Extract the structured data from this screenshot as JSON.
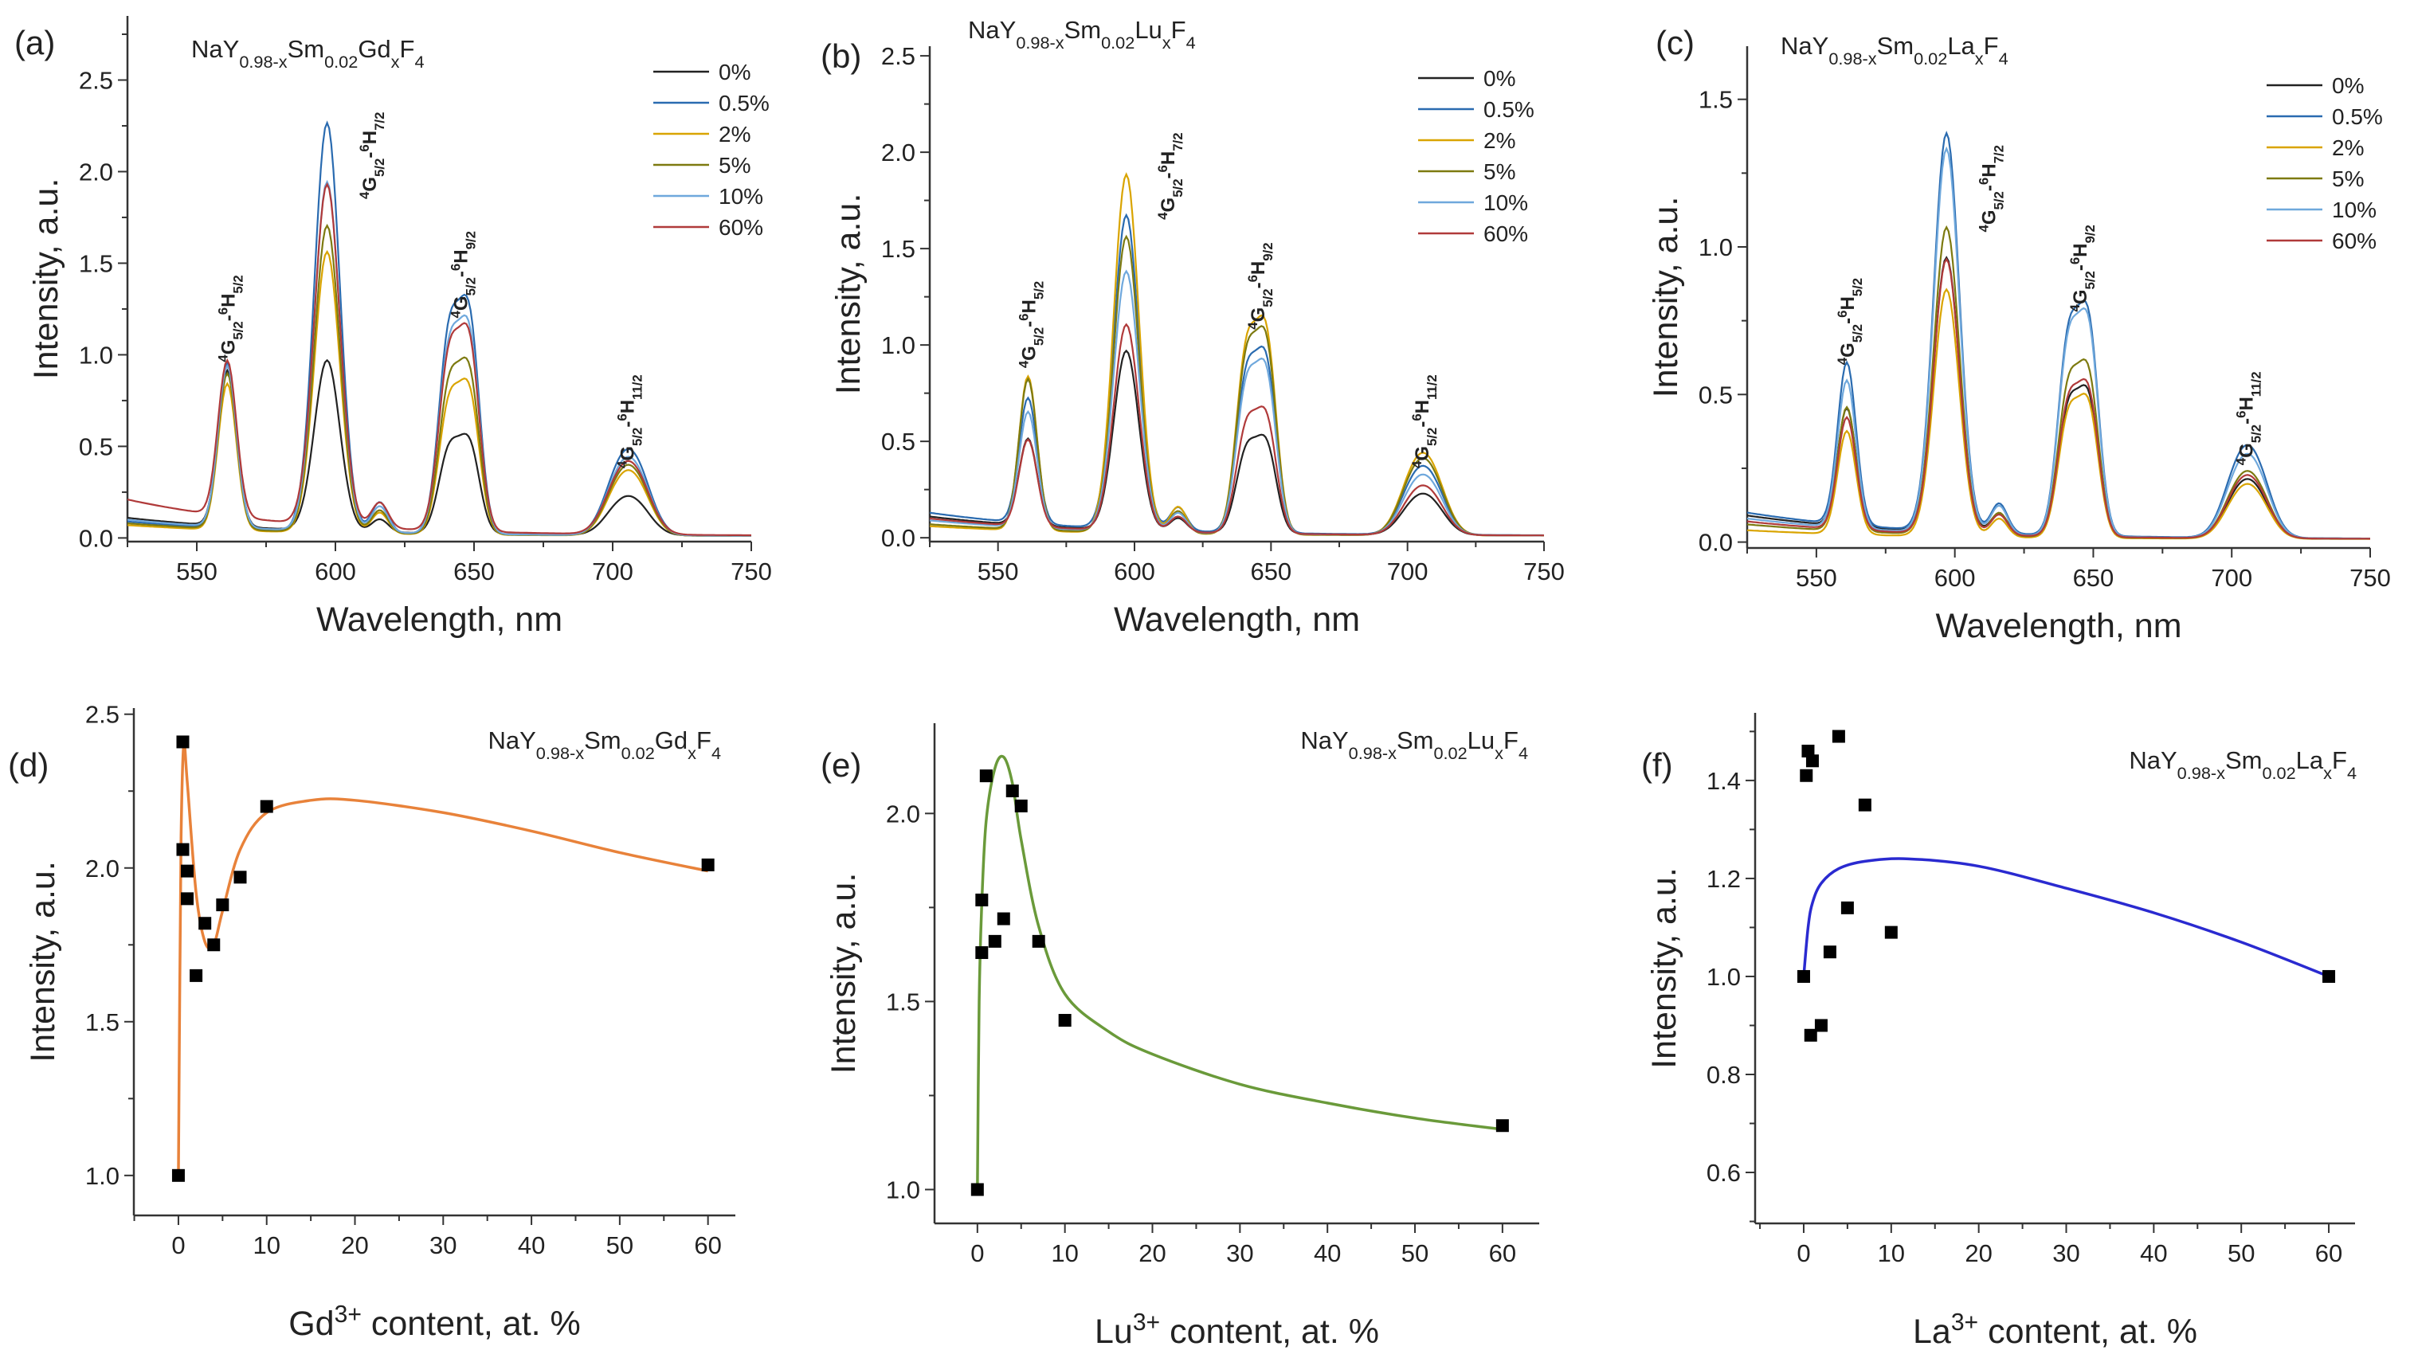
{
  "chart_data": [
    {
      "id": "a",
      "type": "line",
      "panel_label": "(a)",
      "title": [
        [
          "NaY",
          ""
        ],
        [
          "0.98-x",
          "sub"
        ],
        [
          "Sm",
          ""
        ],
        [
          "0.02",
          "sub"
        ],
        [
          "Gd",
          ""
        ],
        [
          "x",
          "sub"
        ],
        [
          "F",
          ""
        ],
        [
          "4",
          "sub"
        ]
      ],
      "xlabel": "Wavelength, nm",
      "ylabel": "Intensity, a.u.",
      "xlim": [
        525,
        750
      ],
      "ylim": [
        -0.02,
        2.85
      ],
      "xticks": [
        550,
        600,
        650,
        700,
        750
      ],
      "yticks": [
        0.0,
        0.5,
        1.0,
        1.5,
        2.0,
        2.5
      ],
      "peak_wavelengths": [
        561,
        597,
        645,
        705
      ],
      "series": [
        {
          "name": "0%",
          "color": "#222222",
          "peaks": [
            0.85,
            1.0,
            0.48,
            0.15
          ],
          "baseline": 0.1
        },
        {
          "name": "0.5%",
          "color": "#2a6bb0",
          "peaks": [
            0.9,
            2.4,
            1.15,
            0.33
          ],
          "baseline": 0.08
        },
        {
          "name": "2%",
          "color": "#d9a400",
          "peaks": [
            0.8,
            1.65,
            0.75,
            0.25
          ],
          "baseline": 0.06
        },
        {
          "name": "5%",
          "color": "#7d7a10",
          "peaks": [
            0.85,
            1.8,
            0.85,
            0.27
          ],
          "baseline": 0.07
        },
        {
          "name": "10%",
          "color": "#6fa8dc",
          "peaks": [
            0.88,
            2.05,
            1.05,
            0.3
          ],
          "baseline": 0.09
        },
        {
          "name": "60%",
          "color": "#b03a3a",
          "peaks": [
            0.85,
            2.0,
            1.0,
            0.28
          ],
          "baseline": 0.2
        }
      ],
      "annotations": [
        {
          "lower": [
            "4",
            "G",
            "5/2"
          ],
          "upper": [
            "6",
            "H",
            "5/2"
          ],
          "wavelength": 561,
          "intensity": 0.96
        },
        {
          "lower": [
            "4",
            "G",
            "5/2"
          ],
          "upper": [
            "6",
            "H",
            "7/2"
          ],
          "wavelength": 612,
          "intensity": 1.85
        },
        {
          "lower": [
            "4",
            "G",
            "5/2"
          ],
          "upper": [
            "6",
            "H",
            "9/2"
          ],
          "wavelength": 645,
          "intensity": 1.2
        },
        {
          "lower": [
            "4",
            "G",
            "5/2"
          ],
          "upper": [
            "6",
            "H",
            "11/2"
          ],
          "wavelength": 705,
          "intensity": 0.38
        }
      ]
    },
    {
      "id": "b",
      "type": "line",
      "panel_label": "(b)",
      "title": [
        [
          "NaY",
          ""
        ],
        [
          "0.98-x",
          "sub"
        ],
        [
          "Sm",
          ""
        ],
        [
          "0.02",
          "sub"
        ],
        [
          "Lu",
          ""
        ],
        [
          "x",
          "sub"
        ],
        [
          "F",
          ""
        ],
        [
          "4",
          "sub"
        ]
      ],
      "xlabel": "Wavelength, nm",
      "ylabel": "Intensity, a.u.",
      "xlim": [
        525,
        750
      ],
      "ylim": [
        -0.02,
        2.55
      ],
      "xticks": [
        550,
        600,
        650,
        700,
        750
      ],
      "yticks": [
        0.0,
        0.5,
        1.0,
        1.5,
        2.0,
        2.5
      ],
      "peak_wavelengths": [
        561,
        597,
        645,
        705
      ],
      "series": [
        {
          "name": "0%",
          "color": "#222222",
          "peaks": [
            0.45,
            1.0,
            0.45,
            0.15
          ],
          "baseline": 0.1
        },
        {
          "name": "0.5%",
          "color": "#2a6bb0",
          "peaks": [
            0.65,
            1.75,
            0.85,
            0.25
          ],
          "baseline": 0.12
        },
        {
          "name": "2%",
          "color": "#d9a400",
          "peaks": [
            0.8,
            2.0,
            1.0,
            0.3
          ],
          "baseline": 0.05
        },
        {
          "name": "5%",
          "color": "#7d7a10",
          "peaks": [
            0.78,
            1.65,
            0.95,
            0.28
          ],
          "baseline": 0.06
        },
        {
          "name": "10%",
          "color": "#6fa8dc",
          "peaks": [
            0.6,
            1.45,
            0.8,
            0.22
          ],
          "baseline": 0.08
        },
        {
          "name": "60%",
          "color": "#b03a3a",
          "peaks": [
            0.45,
            1.15,
            0.58,
            0.18
          ],
          "baseline": 0.09
        }
      ],
      "annotations": [
        {
          "lower": [
            "4",
            "G",
            "5/2"
          ],
          "upper": [
            "6",
            "H",
            "5/2"
          ],
          "wavelength": 561,
          "intensity": 0.88
        },
        {
          "lower": [
            "4",
            "G",
            "5/2"
          ],
          "upper": [
            "6",
            "H",
            "7/2"
          ],
          "wavelength": 612,
          "intensity": 1.65
        },
        {
          "lower": [
            "4",
            "G",
            "5/2"
          ],
          "upper": [
            "6",
            "H",
            "9/2"
          ],
          "wavelength": 645,
          "intensity": 1.08
        },
        {
          "lower": [
            "4",
            "G",
            "5/2"
          ],
          "upper": [
            "6",
            "H",
            "11/2"
          ],
          "wavelength": 705,
          "intensity": 0.36
        }
      ]
    },
    {
      "id": "c",
      "type": "line",
      "panel_label": "(c)",
      "title": [
        [
          "NaY",
          ""
        ],
        [
          "0.98-x",
          "sub"
        ],
        [
          "Sm",
          ""
        ],
        [
          "0.02",
          "sub"
        ],
        [
          "La",
          ""
        ],
        [
          "x",
          "sub"
        ],
        [
          "F",
          ""
        ],
        [
          "4",
          "sub"
        ]
      ],
      "xlabel": "Wavelength, nm",
      "ylabel": "Intensity, a.u.",
      "xlim": [
        525,
        750
      ],
      "ylim": [
        -0.02,
        1.68
      ],
      "xticks": [
        550,
        600,
        650,
        700,
        750
      ],
      "yticks": [
        0.0,
        0.5,
        1.0,
        1.5
      ],
      "peak_wavelengths": [
        561,
        597,
        645,
        705
      ],
      "series": [
        {
          "name": "0%",
          "color": "#222222",
          "peaks": [
            0.4,
            1.0,
            0.45,
            0.14
          ],
          "baseline": 0.08
        },
        {
          "name": "0.5%",
          "color": "#2a6bb0",
          "peaks": [
            0.55,
            1.45,
            0.7,
            0.22
          ],
          "baseline": 0.09
        },
        {
          "name": "2%",
          "color": "#d9a400",
          "peaks": [
            0.35,
            0.9,
            0.43,
            0.13
          ],
          "baseline": 0.03
        },
        {
          "name": "5%",
          "color": "#7d7a10",
          "peaks": [
            0.42,
            1.12,
            0.53,
            0.16
          ],
          "baseline": 0.05
        },
        {
          "name": "10%",
          "color": "#6fa8dc",
          "peaks": [
            0.5,
            1.4,
            0.68,
            0.2
          ],
          "baseline": 0.07
        },
        {
          "name": "60%",
          "color": "#b03a3a",
          "peaks": [
            0.38,
            1.0,
            0.47,
            0.15
          ],
          "baseline": 0.06
        }
      ],
      "annotations": [
        {
          "lower": [
            "4",
            "G",
            "5/2"
          ],
          "upper": [
            "6",
            "H",
            "5/2"
          ],
          "wavelength": 561,
          "intensity": 0.6
        },
        {
          "lower": [
            "4",
            "G",
            "5/2"
          ],
          "upper": [
            "6",
            "H",
            "7/2"
          ],
          "wavelength": 612,
          "intensity": 1.05
        },
        {
          "lower": [
            "4",
            "G",
            "5/2"
          ],
          "upper": [
            "6",
            "H",
            "9/2"
          ],
          "wavelength": 645,
          "intensity": 0.78
        },
        {
          "lower": [
            "4",
            "G",
            "5/2"
          ],
          "upper": [
            "6",
            "H",
            "11/2"
          ],
          "wavelength": 705,
          "intensity": 0.26
        }
      ]
    },
    {
      "id": "d",
      "type": "scatter",
      "panel_label": "(d)",
      "title": [
        [
          "NaY",
          ""
        ],
        [
          "0.98-x",
          "sub"
        ],
        [
          "Sm",
          ""
        ],
        [
          "0.02",
          "sub"
        ],
        [
          "Gd",
          ""
        ],
        [
          "x",
          "sub"
        ],
        [
          "F",
          ""
        ],
        [
          "4",
          "sub"
        ]
      ],
      "xlabel": [
        [
          "Gd",
          ""
        ],
        [
          "3+",
          "sup"
        ],
        [
          " content, at. %",
          ""
        ]
      ],
      "ylabel": "Intensity, a.u.",
      "xlim": [
        -5.05,
        63.1
      ],
      "ylim": [
        0.87,
        2.52
      ],
      "xticks": [
        0,
        10,
        20,
        30,
        40,
        50,
        60
      ],
      "yticks": [
        1.0,
        1.5,
        2.0,
        2.5
      ],
      "fit_color": "#e8823a",
      "points": [
        [
          0,
          1.0
        ],
        [
          0.5,
          2.06
        ],
        [
          0.5,
          2.41
        ],
        [
          1,
          1.99
        ],
        [
          1,
          1.9
        ],
        [
          2,
          1.65
        ],
        [
          3,
          1.82
        ],
        [
          4,
          1.75
        ],
        [
          5,
          1.88
        ],
        [
          7,
          1.97
        ],
        [
          10,
          2.2
        ],
        [
          60,
          2.01
        ]
      ],
      "fit": [
        [
          0,
          1.0
        ],
        [
          0.15,
          1.6
        ],
        [
          0.3,
          2.1
        ],
        [
          0.6,
          2.4
        ],
        [
          1,
          2.28
        ],
        [
          2,
          1.92
        ],
        [
          3,
          1.76
        ],
        [
          4,
          1.75
        ],
        [
          5,
          1.86
        ],
        [
          7,
          2.06
        ],
        [
          10,
          2.18
        ],
        [
          15,
          2.22
        ],
        [
          20,
          2.22
        ],
        [
          30,
          2.18
        ],
        [
          40,
          2.12
        ],
        [
          50,
          2.05
        ],
        [
          60,
          1.99
        ]
      ]
    },
    {
      "id": "e",
      "type": "scatter",
      "panel_label": "(e)",
      "title": [
        [
          "NaY",
          ""
        ],
        [
          "0.98-x",
          "sub"
        ],
        [
          "Sm",
          ""
        ],
        [
          "0.02",
          "sub"
        ],
        [
          "Lu",
          ""
        ],
        [
          "x",
          "sub"
        ],
        [
          "F",
          ""
        ],
        [
          "4",
          "sub"
        ]
      ],
      "xlabel": [
        [
          "Lu",
          ""
        ],
        [
          "3+",
          "sup"
        ],
        [
          " content, at. %",
          ""
        ]
      ],
      "ylabel": "Intensity, a.u.",
      "xlim": [
        -4.9,
        64.2
      ],
      "ylim": [
        0.91,
        2.24
      ],
      "xticks": [
        0,
        10,
        20,
        30,
        40,
        50,
        60
      ],
      "yticks": [
        1.0,
        1.5,
        2.0
      ],
      "fit_color": "#6a9a3a",
      "points": [
        [
          0,
          1.0
        ],
        [
          0.5,
          1.63
        ],
        [
          0.5,
          1.77
        ],
        [
          1,
          2.1
        ],
        [
          2,
          1.66
        ],
        [
          3,
          1.72
        ],
        [
          4,
          2.06
        ],
        [
          5,
          2.02
        ],
        [
          7,
          1.66
        ],
        [
          10,
          1.45
        ],
        [
          60,
          1.17
        ]
      ],
      "fit": [
        [
          0,
          1.0
        ],
        [
          0.2,
          1.5
        ],
        [
          0.5,
          1.76
        ],
        [
          1,
          1.98
        ],
        [
          2,
          2.12
        ],
        [
          3,
          2.15
        ],
        [
          4,
          2.08
        ],
        [
          5,
          1.93
        ],
        [
          7,
          1.7
        ],
        [
          10,
          1.52
        ],
        [
          15,
          1.42
        ],
        [
          20,
          1.36
        ],
        [
          30,
          1.28
        ],
        [
          40,
          1.23
        ],
        [
          50,
          1.19
        ],
        [
          60,
          1.16
        ]
      ]
    },
    {
      "id": "f",
      "type": "scatter",
      "panel_label": "(f)",
      "title": [
        [
          "NaY",
          ""
        ],
        [
          "0.98-x",
          "sub"
        ],
        [
          "Sm",
          ""
        ],
        [
          "0.02",
          "sub"
        ],
        [
          "La",
          ""
        ],
        [
          "x",
          "sub"
        ],
        [
          "F",
          ""
        ],
        [
          "4",
          "sub"
        ]
      ],
      "xlabel": [
        [
          "La",
          ""
        ],
        [
          "3+",
          "sup"
        ],
        [
          " content, at. %",
          ""
        ]
      ],
      "ylabel": "Intensity, a.u.",
      "xlim": [
        -5.55,
        63.0
      ],
      "ylim": [
        0.496,
        1.538
      ],
      "xticks": [
        0,
        10,
        20,
        30,
        40,
        50,
        60
      ],
      "yticks": [
        0.6,
        0.8,
        1.0,
        1.2,
        1.4
      ],
      "fit_color": "#2a2ad0",
      "points": [
        [
          0,
          1.0
        ],
        [
          0.3,
          1.41
        ],
        [
          0.5,
          1.46
        ],
        [
          0.8,
          0.88
        ],
        [
          1,
          1.44
        ],
        [
          2,
          0.9
        ],
        [
          3,
          1.05
        ],
        [
          4,
          1.49
        ],
        [
          5,
          1.14
        ],
        [
          7,
          1.35
        ],
        [
          10,
          1.09
        ],
        [
          60,
          1.0
        ]
      ],
      "fit": [
        [
          0,
          1.0
        ],
        [
          0.5,
          1.1
        ],
        [
          1,
          1.15
        ],
        [
          2,
          1.19
        ],
        [
          4,
          1.22
        ],
        [
          7,
          1.235
        ],
        [
          12,
          1.24
        ],
        [
          20,
          1.225
        ],
        [
          30,
          1.18
        ],
        [
          40,
          1.13
        ],
        [
          50,
          1.07
        ],
        [
          60,
          1.0
        ]
      ]
    }
  ]
}
